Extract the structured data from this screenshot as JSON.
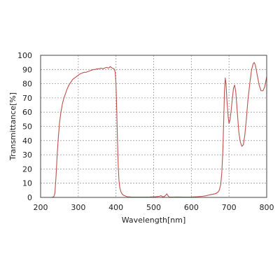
{
  "chart_data": {
    "type": "line",
    "title": "",
    "xlabel": "Wavelength[nm]",
    "ylabel": "Transmittance[%]",
    "xlim": [
      200,
      800
    ],
    "ylim": [
      0,
      100
    ],
    "xticks": [
      200,
      300,
      400,
      500,
      600,
      700,
      800
    ],
    "yticks": [
      0,
      10,
      20,
      30,
      40,
      50,
      60,
      70,
      80,
      90,
      100
    ],
    "grid": true,
    "grid_style": "dotted",
    "legend": "none",
    "colors": {
      "line": "#c0504d",
      "grid": "#9a9a9a",
      "frame": "#444444"
    },
    "series": [
      {
        "values": [
          [
            200,
            0
          ],
          [
            230,
            0
          ],
          [
            235,
            0.5
          ],
          [
            238,
            3
          ],
          [
            241,
            15
          ],
          [
            244,
            30
          ],
          [
            247,
            42
          ],
          [
            250,
            52
          ],
          [
            254,
            60
          ],
          [
            258,
            66
          ],
          [
            262,
            70
          ],
          [
            266,
            73
          ],
          [
            270,
            76
          ],
          [
            275,
            79
          ],
          [
            280,
            81
          ],
          [
            285,
            83
          ],
          [
            290,
            84
          ],
          [
            295,
            85
          ],
          [
            300,
            86
          ],
          [
            305,
            87
          ],
          [
            310,
            87.5
          ],
          [
            315,
            88
          ],
          [
            320,
            88
          ],
          [
            325,
            88.5
          ],
          [
            330,
            89
          ],
          [
            335,
            89.5
          ],
          [
            340,
            90
          ],
          [
            345,
            90
          ],
          [
            350,
            90.5
          ],
          [
            355,
            90.5
          ],
          [
            360,
            91
          ],
          [
            365,
            90.5
          ],
          [
            370,
            91
          ],
          [
            375,
            91.5
          ],
          [
            380,
            91
          ],
          [
            385,
            92
          ],
          [
            390,
            91
          ],
          [
            395,
            90.5
          ],
          [
            398,
            88
          ],
          [
            400,
            80
          ],
          [
            402,
            62
          ],
          [
            404,
            40
          ],
          [
            406,
            22
          ],
          [
            408,
            12
          ],
          [
            410,
            7
          ],
          [
            413,
            4
          ],
          [
            416,
            2.5
          ],
          [
            420,
            1.5
          ],
          [
            425,
            1
          ],
          [
            430,
            0.5
          ],
          [
            440,
            0.3
          ],
          [
            450,
            0.2
          ],
          [
            470,
            0.2
          ],
          [
            490,
            0.3
          ],
          [
            505,
            0.5
          ],
          [
            515,
            0.8
          ],
          [
            520,
            1.2
          ],
          [
            524,
            0.4
          ],
          [
            528,
            0.6
          ],
          [
            532,
            1.5
          ],
          [
            535,
            2.5
          ],
          [
            538,
            1.2
          ],
          [
            541,
            0.3
          ],
          [
            546,
            0.2
          ],
          [
            560,
            0.3
          ],
          [
            580,
            0.2
          ],
          [
            600,
            0.3
          ],
          [
            615,
            0.5
          ],
          [
            630,
            0.8
          ],
          [
            640,
            1.2
          ],
          [
            648,
            1.8
          ],
          [
            656,
            2.2
          ],
          [
            664,
            2.6
          ],
          [
            670,
            3.5
          ],
          [
            674,
            5
          ],
          [
            678,
            9
          ],
          [
            681,
            18
          ],
          [
            684,
            35
          ],
          [
            686,
            55
          ],
          [
            688,
            75
          ],
          [
            690,
            84
          ],
          [
            692,
            80
          ],
          [
            695,
            66
          ],
          [
            698,
            56
          ],
          [
            700,
            52
          ],
          [
            703,
            55
          ],
          [
            706,
            62
          ],
          [
            709,
            70
          ],
          [
            712,
            77
          ],
          [
            715,
            79
          ],
          [
            718,
            74
          ],
          [
            722,
            60
          ],
          [
            726,
            46
          ],
          [
            730,
            39
          ],
          [
            734,
            36
          ],
          [
            738,
            37
          ],
          [
            742,
            44
          ],
          [
            746,
            55
          ],
          [
            750,
            68
          ],
          [
            755,
            80
          ],
          [
            760,
            90
          ],
          [
            764,
            94
          ],
          [
            767,
            95
          ],
          [
            770,
            93
          ],
          [
            775,
            86
          ],
          [
            780,
            79
          ],
          [
            785,
            75
          ],
          [
            790,
            75
          ],
          [
            795,
            78
          ],
          [
            800,
            85
          ]
        ]
      }
    ]
  }
}
